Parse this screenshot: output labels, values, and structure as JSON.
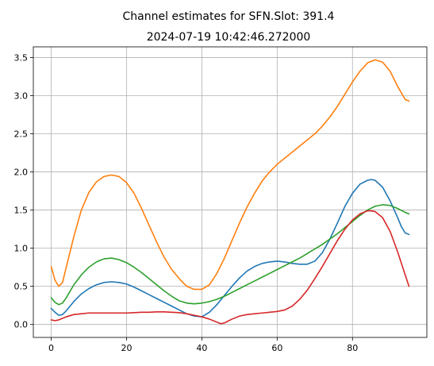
{
  "chart_data": {
    "type": "line",
    "title": "Channel estimates for SFN.Slot: 391.4",
    "subtitle": "2024-07-19 10:42:46.272000",
    "xlabel": "",
    "ylabel": "",
    "xlim": [
      -4.75,
      99.75
    ],
    "ylim": [
      -0.17,
      3.64
    ],
    "xticks": [
      0,
      20,
      40,
      60,
      80
    ],
    "yticks": [
      0.0,
      0.5,
      1.0,
      1.5,
      2.0,
      2.5,
      3.0,
      3.5
    ],
    "grid": true,
    "series": [
      {
        "color": "#1f77b4",
        "x": [
          0,
          1,
          2,
          3,
          4,
          6,
          8,
          10,
          12,
          14,
          16,
          18,
          20,
          22,
          24,
          26,
          28,
          30,
          32,
          34,
          36,
          38,
          40,
          42,
          44,
          46,
          48,
          50,
          52,
          54,
          56,
          58,
          60,
          62,
          64,
          66,
          68,
          70,
          72,
          74,
          76,
          78,
          80,
          82,
          84,
          85,
          86,
          88,
          90,
          92,
          93,
          94,
          95
        ],
        "y": [
          0.21,
          0.16,
          0.12,
          0.13,
          0.18,
          0.3,
          0.4,
          0.47,
          0.52,
          0.55,
          0.56,
          0.55,
          0.53,
          0.49,
          0.44,
          0.39,
          0.34,
          0.29,
          0.24,
          0.19,
          0.14,
          0.11,
          0.1,
          0.16,
          0.26,
          0.38,
          0.5,
          0.61,
          0.7,
          0.76,
          0.8,
          0.82,
          0.83,
          0.82,
          0.8,
          0.79,
          0.79,
          0.83,
          0.94,
          1.12,
          1.33,
          1.55,
          1.72,
          1.84,
          1.89,
          1.9,
          1.89,
          1.8,
          1.62,
          1.4,
          1.28,
          1.2,
          1.18
        ]
      },
      {
        "color": "#ff7f0e",
        "x": [
          0,
          1,
          2,
          3,
          4,
          6,
          8,
          10,
          12,
          14,
          16,
          18,
          20,
          22,
          24,
          26,
          28,
          30,
          32,
          34,
          36,
          38,
          40,
          42,
          44,
          46,
          48,
          50,
          52,
          54,
          56,
          58,
          60,
          62,
          64,
          66,
          68,
          70,
          72,
          74,
          76,
          78,
          80,
          82,
          84,
          86,
          88,
          90,
          92,
          94,
          95
        ],
        "y": [
          0.76,
          0.58,
          0.5,
          0.55,
          0.75,
          1.15,
          1.5,
          1.73,
          1.87,
          1.94,
          1.96,
          1.94,
          1.86,
          1.72,
          1.52,
          1.3,
          1.08,
          0.88,
          0.72,
          0.6,
          0.5,
          0.46,
          0.46,
          0.52,
          0.67,
          0.87,
          1.1,
          1.33,
          1.54,
          1.72,
          1.88,
          2.0,
          2.1,
          2.18,
          2.26,
          2.34,
          2.42,
          2.5,
          2.6,
          2.72,
          2.86,
          3.02,
          3.18,
          3.32,
          3.43,
          3.47,
          3.44,
          3.32,
          3.12,
          2.95,
          2.93
        ]
      },
      {
        "color": "#2ca02c",
        "x": [
          0,
          1,
          2,
          3,
          4,
          6,
          8,
          10,
          12,
          14,
          16,
          18,
          20,
          22,
          24,
          26,
          28,
          30,
          32,
          34,
          36,
          38,
          40,
          42,
          44,
          46,
          48,
          50,
          52,
          54,
          56,
          58,
          60,
          62,
          64,
          66,
          68,
          70,
          72,
          74,
          76,
          78,
          80,
          82,
          84,
          86,
          88,
          90,
          92,
          94,
          95
        ],
        "y": [
          0.35,
          0.29,
          0.26,
          0.28,
          0.35,
          0.52,
          0.65,
          0.75,
          0.82,
          0.86,
          0.87,
          0.85,
          0.81,
          0.75,
          0.68,
          0.6,
          0.52,
          0.44,
          0.37,
          0.31,
          0.28,
          0.27,
          0.28,
          0.3,
          0.33,
          0.37,
          0.42,
          0.47,
          0.52,
          0.57,
          0.62,
          0.67,
          0.72,
          0.77,
          0.82,
          0.87,
          0.93,
          0.99,
          1.05,
          1.12,
          1.19,
          1.27,
          1.35,
          1.43,
          1.5,
          1.55,
          1.57,
          1.56,
          1.52,
          1.47,
          1.45
        ]
      },
      {
        "color": "#d62728",
        "x": [
          0,
          1,
          2,
          4,
          6,
          8,
          10,
          12,
          14,
          16,
          18,
          20,
          22,
          24,
          26,
          28,
          30,
          32,
          34,
          36,
          38,
          40,
          42,
          44,
          45,
          46,
          48,
          50,
          52,
          54,
          56,
          58,
          60,
          62,
          64,
          66,
          68,
          70,
          72,
          74,
          76,
          78,
          80,
          82,
          84,
          85,
          86,
          88,
          90,
          92,
          94,
          95
        ],
        "y": [
          0.06,
          0.05,
          0.06,
          0.1,
          0.13,
          0.14,
          0.15,
          0.15,
          0.15,
          0.15,
          0.15,
          0.15,
          0.155,
          0.16,
          0.16,
          0.165,
          0.165,
          0.16,
          0.155,
          0.14,
          0.12,
          0.1,
          0.07,
          0.03,
          0.01,
          0.02,
          0.07,
          0.11,
          0.13,
          0.14,
          0.15,
          0.16,
          0.17,
          0.19,
          0.24,
          0.33,
          0.45,
          0.6,
          0.76,
          0.93,
          1.1,
          1.25,
          1.37,
          1.45,
          1.49,
          1.49,
          1.48,
          1.4,
          1.22,
          0.95,
          0.65,
          0.5
        ]
      }
    ]
  }
}
